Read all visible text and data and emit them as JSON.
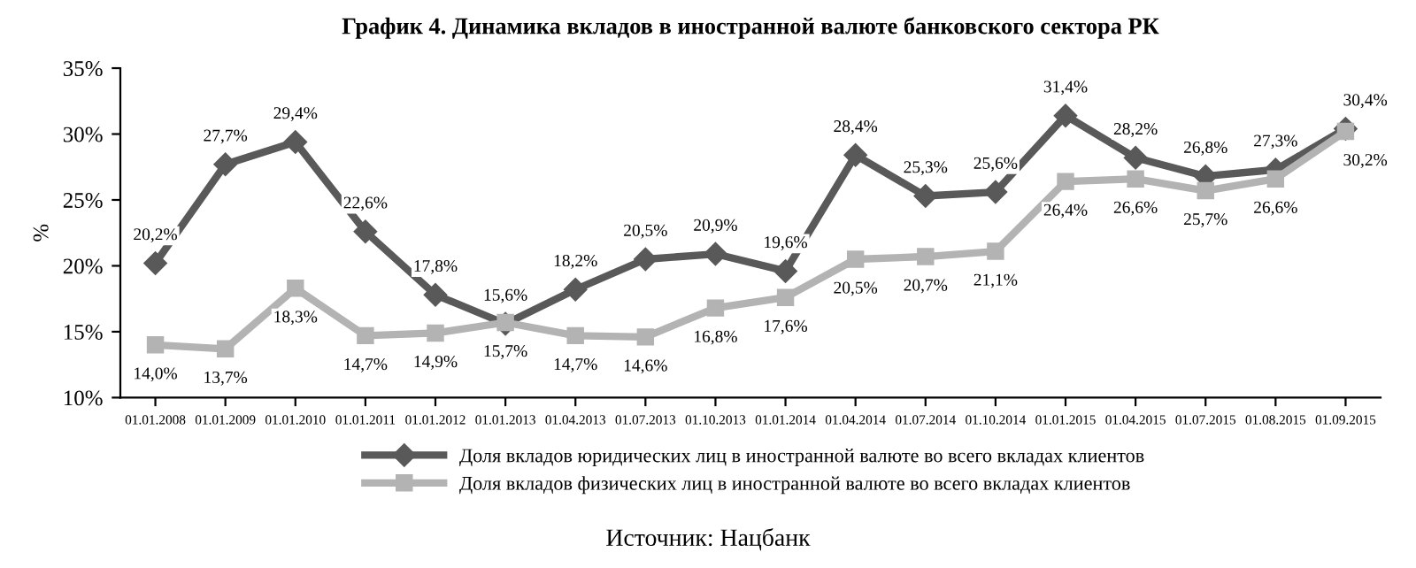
{
  "chart_data": {
    "type": "line",
    "title": "График 4. Динамика вкладов в иностранной валюте банковского сектора РК",
    "ylabel": "%",
    "categories": [
      "01.01.2008",
      "01.01.2009",
      "01.01.2010",
      "01.01.2011",
      "01.01.2012",
      "01.01.2013",
      "01.04.2013",
      "01.07.2013",
      "01.10.2013",
      "01.01.2014",
      "01.04.2014",
      "01.07.2014",
      "01.10.2014",
      "01.01.2015",
      "01.04.2015",
      "01.07.2015",
      "01.08.2015",
      "01.09.2015"
    ],
    "series": [
      {
        "name": "Доля вкладов юридических лиц в иностранной валюте во всего вкладах клиентов",
        "color": "#595959",
        "marker": "diamond",
        "values": [
          20.2,
          27.7,
          29.4,
          22.6,
          17.8,
          15.6,
          18.2,
          20.5,
          20.9,
          19.6,
          28.4,
          25.3,
          25.6,
          31.4,
          28.2,
          26.8,
          27.3,
          30.4
        ],
        "value_labels": [
          "20,2%",
          "27,7%",
          "29,4%",
          "22,6%",
          "17,8%",
          "15,6%",
          "18,2%",
          "20,5%",
          "20,9%",
          "19,6%",
          "28,4%",
          "25,3%",
          "25,6%",
          "31,4%",
          "28,2%",
          "26,8%",
          "27,3%",
          "30,4%"
        ]
      },
      {
        "name": "Доля вкладов физических лиц в иностранной валюте во всего вкладах клиентов",
        "color": "#b3b3b3",
        "marker": "square",
        "values": [
          14.0,
          13.7,
          18.3,
          14.7,
          14.9,
          15.7,
          14.7,
          14.6,
          16.8,
          17.6,
          20.5,
          20.7,
          21.1,
          26.4,
          26.6,
          25.7,
          26.6,
          30.2
        ],
        "value_labels": [
          "14,0%",
          "13,7%",
          "18,3%",
          "14,7%",
          "14,9%",
          "15,7%",
          "14,7%",
          "14,6%",
          "16,8%",
          "17,6%",
          "20,5%",
          "20,7%",
          "21,1%",
          "26,4%",
          "26,6%",
          "25,7%",
          "26,6%",
          "30,2%"
        ]
      }
    ],
    "ylim": [
      10,
      35
    ],
    "yticks": [
      {
        "value": 10,
        "label": "10%"
      },
      {
        "value": 15,
        "label": "15%"
      },
      {
        "value": 20,
        "label": "20%"
      },
      {
        "value": 25,
        "label": "25%"
      },
      {
        "value": 30,
        "label": "30%"
      },
      {
        "value": 35,
        "label": "35%"
      }
    ],
    "grid": false,
    "legend": "bottom",
    "line_style": "solid",
    "annotations": [
      "Источник: Нацбанк"
    ]
  }
}
